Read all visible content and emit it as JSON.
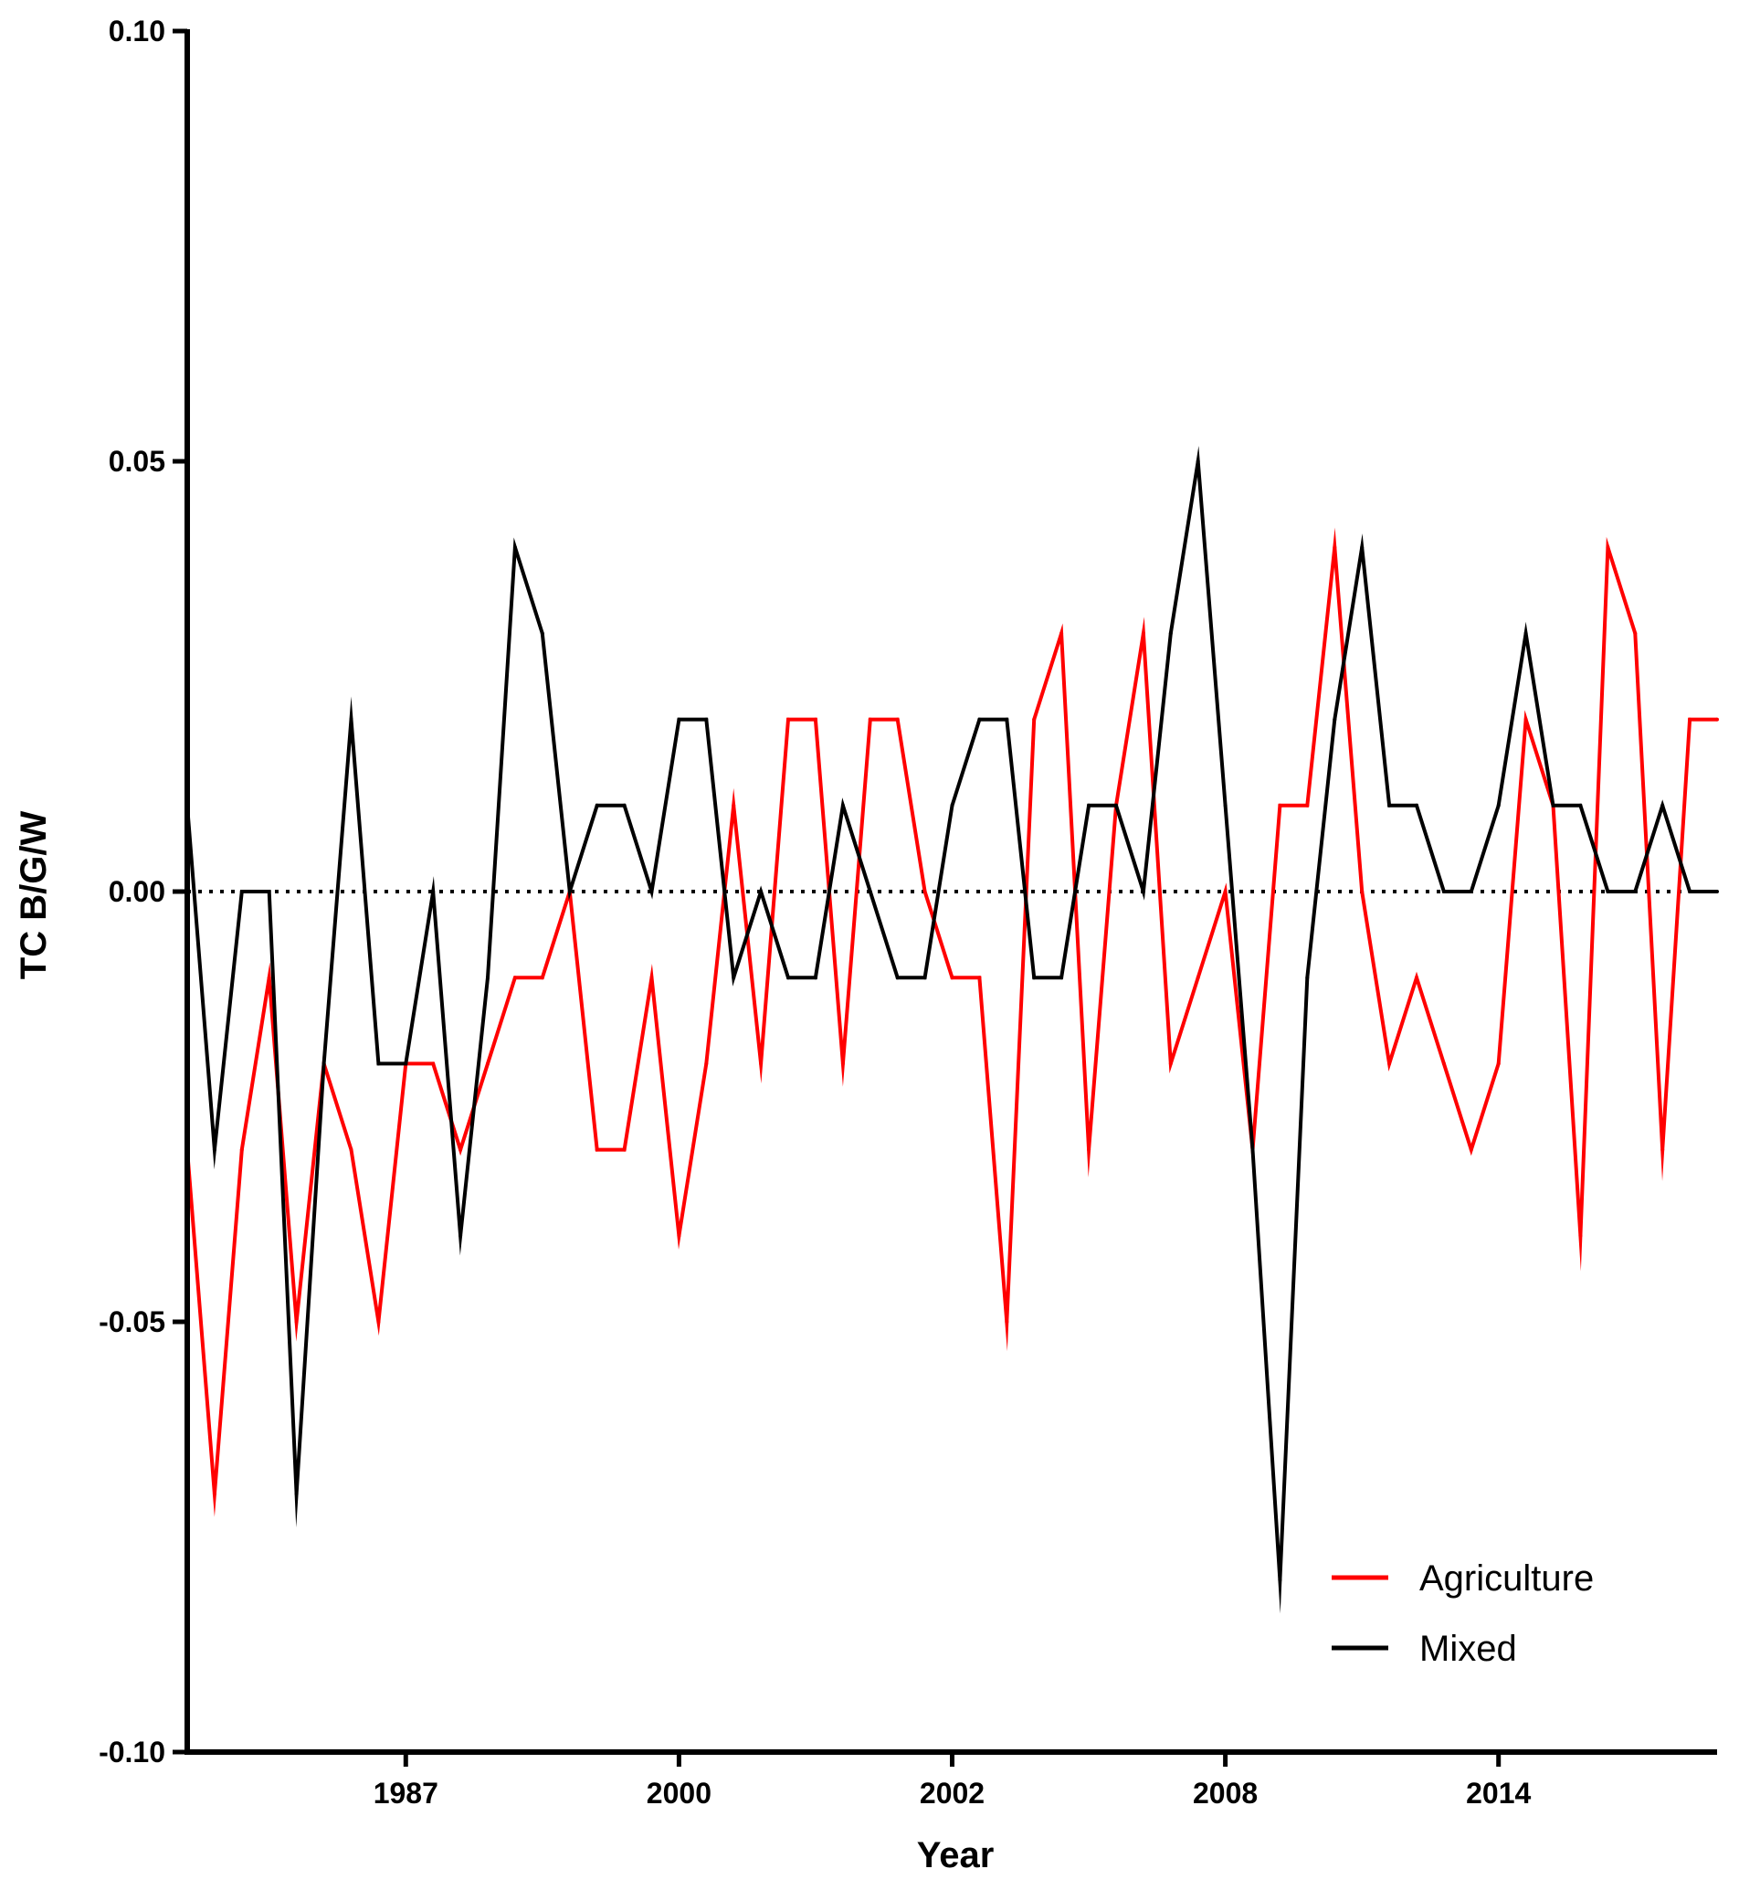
{
  "chart_data": {
    "type": "line",
    "xlabel": "Year",
    "ylabel": "TC B/G/W",
    "ylim": [
      -0.1,
      0.1
    ],
    "yticks": [
      "-0.10",
      "-0.05",
      "0.00",
      "0.05",
      "0.10"
    ],
    "x_tick_labels": [
      "1987",
      "2000",
      "2002",
      "2008",
      "2014"
    ],
    "x_tick_positions": [
      8,
      18,
      28,
      38,
      48
    ],
    "n_points": 57,
    "reference_line": {
      "y": 0.0,
      "style": "dotted"
    },
    "legend_position": "bottom-right",
    "grid": false,
    "series": [
      {
        "name": "Agriculture",
        "color": "#ff0000",
        "values": [
          -0.03,
          -0.07,
          -0.03,
          -0.01,
          -0.05,
          -0.02,
          -0.03,
          -0.05,
          -0.02,
          -0.02,
          -0.03,
          -0.02,
          -0.01,
          -0.01,
          0.0,
          -0.03,
          -0.03,
          -0.01,
          -0.04,
          -0.02,
          0.01,
          -0.02,
          0.02,
          0.02,
          -0.02,
          0.02,
          0.02,
          0.0,
          -0.01,
          -0.01,
          -0.05,
          0.02,
          0.03,
          -0.03,
          0.01,
          0.03,
          -0.02,
          -0.01,
          0.0,
          -0.03,
          0.01,
          0.01,
          0.04,
          0.0,
          -0.02,
          -0.01,
          -0.02,
          -0.03,
          -0.02,
          0.02,
          0.01,
          -0.04,
          0.04,
          0.03,
          -0.03,
          0.02,
          0.02
        ]
      },
      {
        "name": "Mixed",
        "color": "#000000",
        "values": [
          0.01,
          -0.03,
          0.0,
          0.0,
          -0.07,
          -0.02,
          0.02,
          -0.02,
          -0.02,
          0.0,
          -0.04,
          -0.01,
          0.04,
          0.03,
          0.0,
          0.01,
          0.01,
          0.0,
          0.02,
          0.02,
          -0.01,
          0.0,
          -0.01,
          -0.01,
          0.01,
          0.0,
          -0.01,
          -0.01,
          0.01,
          0.02,
          0.02,
          -0.01,
          -0.01,
          0.01,
          0.01,
          0.0,
          0.03,
          0.05,
          0.01,
          -0.03,
          -0.08,
          -0.01,
          0.02,
          0.04,
          0.01,
          0.01,
          0.0,
          0.0,
          0.01,
          0.03,
          0.01,
          0.01,
          0.0,
          0.0,
          0.01,
          0.0,
          0.0
        ]
      }
    ]
  }
}
